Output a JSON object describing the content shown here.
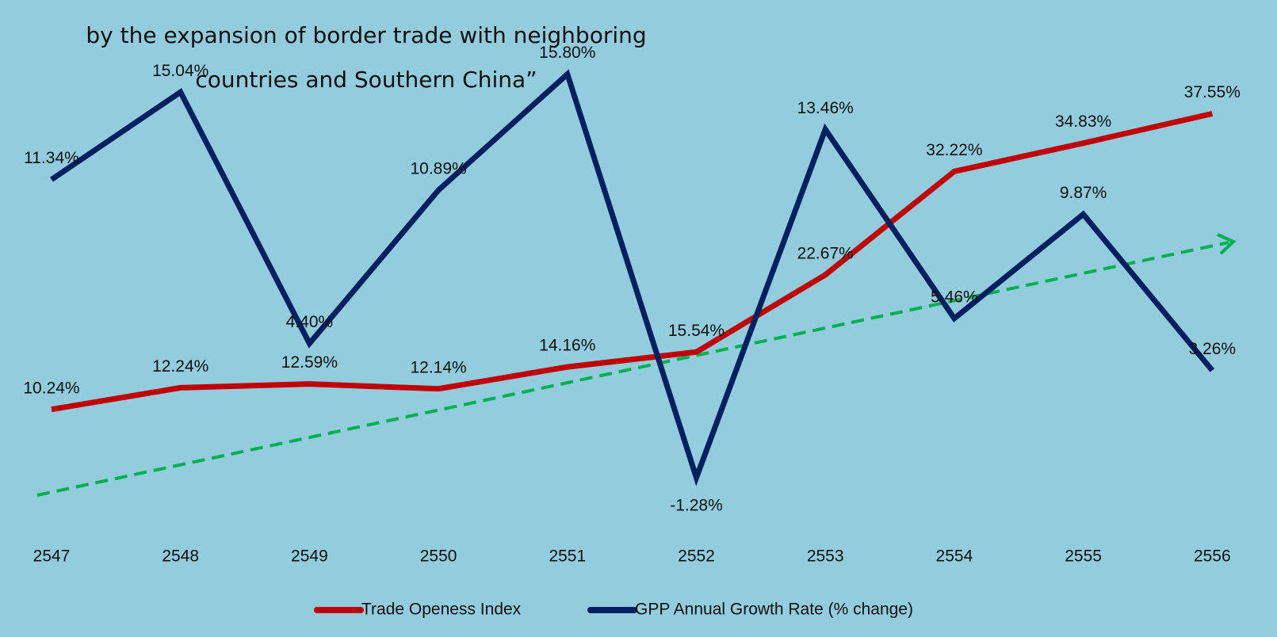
{
  "chart_data": {
    "type": "line",
    "title_lines": [
      "by the expansion of border trade with neighboring",
      "countries and Southern China”"
    ],
    "categories": [
      "2547",
      "2548",
      "2549",
      "2550",
      "2551",
      "2552",
      "2553",
      "2554",
      "2555",
      "2556"
    ],
    "series": [
      {
        "name": "Trade Openess Index",
        "color": "#c00000",
        "axis": "y",
        "values": [
          10.24,
          12.24,
          12.59,
          12.14,
          14.16,
          15.54,
          22.67,
          32.22,
          34.83,
          37.55
        ],
        "value_labels": [
          "10.24%",
          "12.24%",
          "12.59%",
          "12.14%",
          "14.16%",
          "15.54%",
          "22.67%",
          "32.22%",
          "34.83%",
          "37.55%"
        ]
      },
      {
        "name": "GPP Annual Growth Rate (% change)",
        "color": "#002060",
        "axis": "y2",
        "values": [
          11.34,
          15.04,
          4.4,
          10.89,
          15.8,
          -1.28,
          13.46,
          5.46,
          9.87,
          3.26
        ],
        "value_labels": [
          "11.34%",
          "15.04%",
          "4.40%",
          "10.89%",
          "15.80%",
          "-1.28%",
          "13.46%",
          "5.46%",
          "9.87%",
          "3.26%"
        ]
      }
    ],
    "ylim": [
      -2,
      46
    ],
    "y2lim": [
      -4,
      18
    ],
    "legend": "bottom"
  }
}
